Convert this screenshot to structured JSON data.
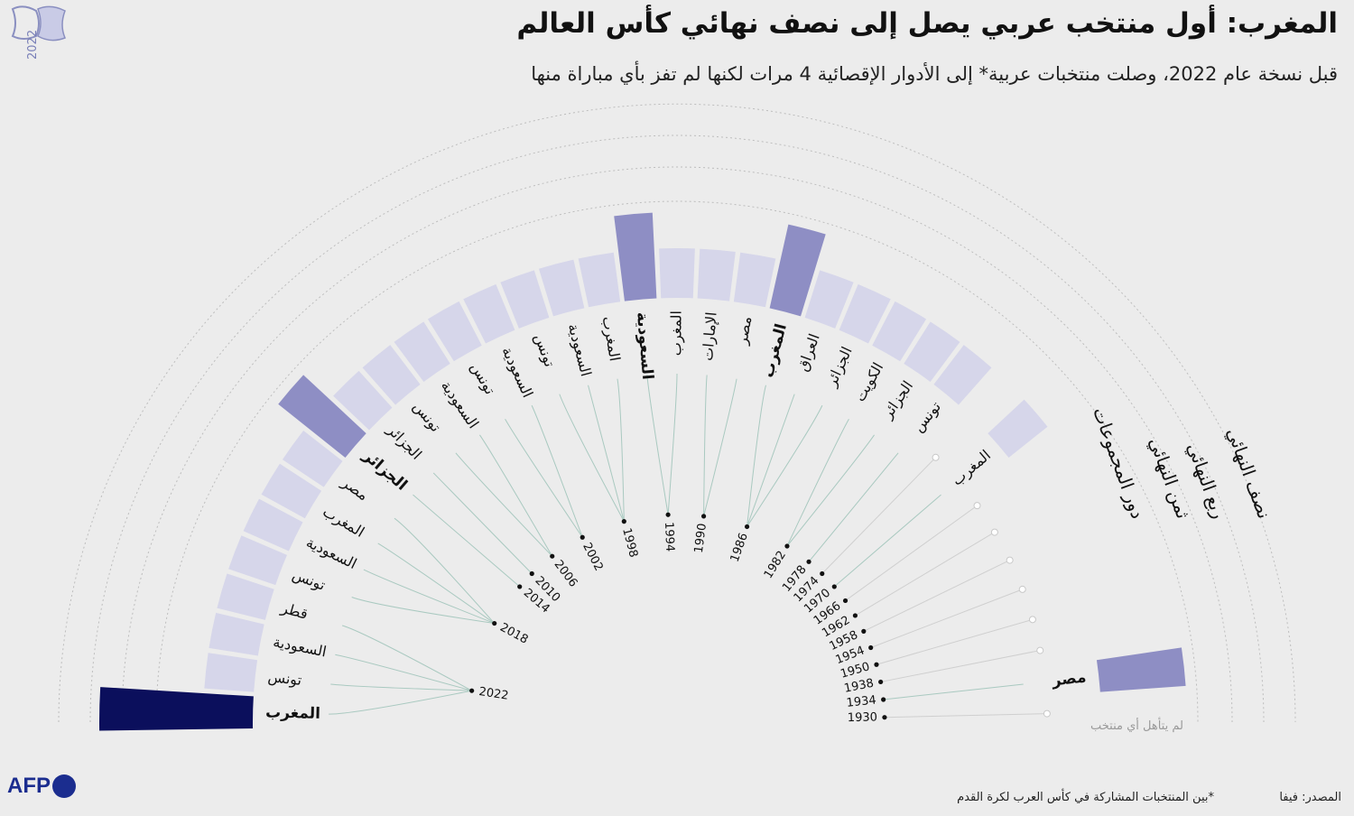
{
  "header": {
    "title": "المغرب: أول منتخب عربي يصل إلى نصف نهائي كأس العالم",
    "subtitle": "قبل نسخة عام 2022، وصلت منتخبات عربية* إلى الأدوار الإقصائية 4 مرات لكنها لم تفز بأي مباراة منها"
  },
  "logo": {
    "icon": "qatar-2022-logo-icon",
    "text": "2022"
  },
  "colors": {
    "groups": "#d6d6ea",
    "r16": "#8e8ec4",
    "qf": "#4a4a9a",
    "sf": "#0b0f5c",
    "arc": "#bdbdbd",
    "leader": "#a9c9c0",
    "background": "#ececec"
  },
  "chart_data": {
    "type": "radial-bar",
    "stages": [
      "لم يتأهل أي منتخب",
      "دور المجموعات",
      "ثمن النهائي",
      "ربع النهائي",
      "نصف النهائي"
    ],
    "editions": [
      {
        "year": "1930",
        "teams": []
      },
      {
        "year": "1934",
        "teams": [
          {
            "name": "مصر",
            "stage": 2,
            "bold": true
          }
        ]
      },
      {
        "year": "1938",
        "teams": []
      },
      {
        "year": "1950",
        "teams": []
      },
      {
        "year": "1954",
        "teams": []
      },
      {
        "year": "1958",
        "teams": []
      },
      {
        "year": "1962",
        "teams": []
      },
      {
        "year": "1966",
        "teams": []
      },
      {
        "year": "1970",
        "teams": [
          {
            "name": "المغرب",
            "stage": 1
          }
        ]
      },
      {
        "year": "1974",
        "teams": []
      },
      {
        "year": "1978",
        "teams": [
          {
            "name": "تونس",
            "stage": 1
          }
        ]
      },
      {
        "year": "1982",
        "teams": [
          {
            "name": "الجزائر",
            "stage": 1
          },
          {
            "name": "الكويت",
            "stage": 1
          }
        ]
      },
      {
        "year": "1986",
        "teams": [
          {
            "name": "الجزائر",
            "stage": 1
          },
          {
            "name": "العراق",
            "stage": 1
          },
          {
            "name": "المغرب",
            "stage": 2,
            "bold": true
          }
        ]
      },
      {
        "year": "1990",
        "teams": [
          {
            "name": "مصر",
            "stage": 1
          },
          {
            "name": "الإمارات",
            "stage": 1
          }
        ]
      },
      {
        "year": "1994",
        "teams": [
          {
            "name": "المغرب",
            "stage": 1
          },
          {
            "name": "السعودية",
            "stage": 2,
            "bold": true
          }
        ]
      },
      {
        "year": "1998",
        "teams": [
          {
            "name": "المغرب",
            "stage": 1
          },
          {
            "name": "السعودية",
            "stage": 1
          },
          {
            "name": "تونس",
            "stage": 1
          }
        ]
      },
      {
        "year": "2002",
        "teams": [
          {
            "name": "السعودية",
            "stage": 1
          },
          {
            "name": "تونس",
            "stage": 1
          }
        ]
      },
      {
        "year": "2006",
        "teams": [
          {
            "name": "السعودية",
            "stage": 1
          },
          {
            "name": "تونس",
            "stage": 1
          }
        ]
      },
      {
        "year": "2010",
        "teams": [
          {
            "name": "الجزائر",
            "stage": 1
          }
        ]
      },
      {
        "year": "2014",
        "teams": [
          {
            "name": "الجزائر",
            "stage": 2,
            "bold": true
          }
        ]
      },
      {
        "year": "2018",
        "teams": [
          {
            "name": "مصر",
            "stage": 1
          },
          {
            "name": "المغرب",
            "stage": 1
          },
          {
            "name": "السعودية",
            "stage": 1
          },
          {
            "name": "تونس",
            "stage": 1
          }
        ]
      },
      {
        "year": "2022",
        "teams": [
          {
            "name": "قطر",
            "stage": 1
          },
          {
            "name": "السعودية",
            "stage": 1
          },
          {
            "name": "تونس",
            "stage": 1
          },
          {
            "name": "المغرب",
            "stage": 4,
            "bold": true
          }
        ]
      }
    ]
  },
  "footer": {
    "source": "المصدر: فيفا",
    "footnote": "*بين المنتخبات المشاركة في كأس العرب لكرة القدم",
    "brand": "AFP"
  }
}
